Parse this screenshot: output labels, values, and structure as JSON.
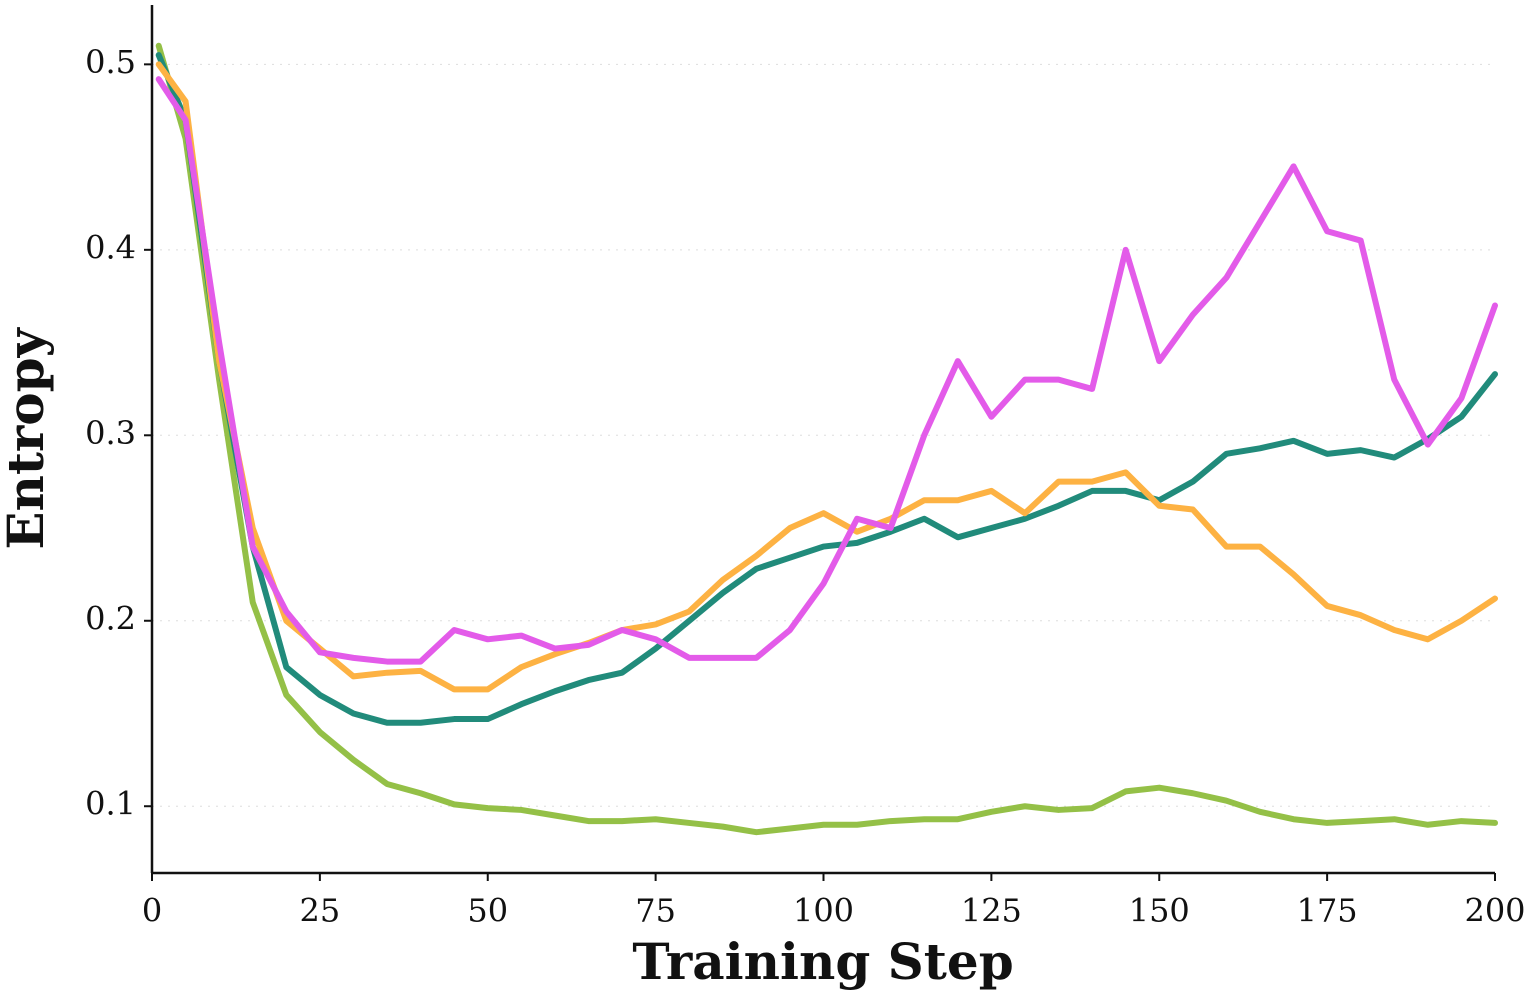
{
  "chart_data": {
    "type": "line",
    "x_label": "Training Step",
    "y_label": "Entropy",
    "x": [
      1,
      5,
      10,
      15,
      20,
      25,
      30,
      35,
      40,
      45,
      50,
      55,
      60,
      65,
      70,
      75,
      80,
      85,
      90,
      95,
      100,
      105,
      110,
      115,
      120,
      125,
      130,
      135,
      140,
      145,
      150,
      155,
      160,
      165,
      170,
      175,
      180,
      185,
      190,
      195,
      200
    ],
    "series": [
      {
        "color": "#94c047",
        "values": [
          0.51,
          0.46,
          0.33,
          0.21,
          0.16,
          0.14,
          0.125,
          0.112,
          0.107,
          0.101,
          0.099,
          0.098,
          0.095,
          0.092,
          0.092,
          0.093,
          0.091,
          0.089,
          0.086,
          0.088,
          0.09,
          0.09,
          0.092,
          0.093,
          0.093,
          0.097,
          0.1,
          0.098,
          0.099,
          0.108,
          0.11,
          0.107,
          0.103,
          0.097,
          0.093,
          0.091,
          0.092,
          0.093,
          0.09,
          0.092,
          0.091
        ]
      },
      {
        "color": "#218b7b",
        "values": [
          0.505,
          0.47,
          0.34,
          0.24,
          0.175,
          0.16,
          0.15,
          0.145,
          0.145,
          0.147,
          0.147,
          0.155,
          0.162,
          0.168,
          0.172,
          0.185,
          0.2,
          0.215,
          0.228,
          0.234,
          0.24,
          0.242,
          0.248,
          0.255,
          0.245,
          0.25,
          0.255,
          0.262,
          0.27,
          0.27,
          0.265,
          0.275,
          0.29,
          0.293,
          0.297,
          0.29,
          0.292,
          0.288,
          0.298,
          0.31,
          0.333
        ]
      },
      {
        "color": "#fdb243",
        "values": [
          0.5,
          0.48,
          0.34,
          0.25,
          0.2,
          0.185,
          0.17,
          0.172,
          0.173,
          0.163,
          0.163,
          0.175,
          0.182,
          0.188,
          0.195,
          0.198,
          0.205,
          0.222,
          0.235,
          0.25,
          0.258,
          0.248,
          0.255,
          0.265,
          0.265,
          0.27,
          0.258,
          0.275,
          0.275,
          0.28,
          0.262,
          0.26,
          0.24,
          0.24,
          0.225,
          0.208,
          0.203,
          0.195,
          0.19,
          0.2,
          0.212
        ]
      },
      {
        "color": "#e35be9",
        "values": [
          0.492,
          0.47,
          0.35,
          0.24,
          0.205,
          0.183,
          0.18,
          0.178,
          0.178,
          0.195,
          0.19,
          0.192,
          0.185,
          0.187,
          0.195,
          0.19,
          0.18,
          0.18,
          0.18,
          0.195,
          0.22,
          0.255,
          0.25,
          0.3,
          0.34,
          0.31,
          0.33,
          0.33,
          0.325,
          0.4,
          0.34,
          0.365,
          0.385,
          0.415,
          0.445,
          0.41,
          0.405,
          0.33,
          0.295,
          0.32,
          0.37
        ]
      }
    ],
    "xlim": [
      0,
      200
    ],
    "xticks": [
      0,
      25,
      50,
      75,
      100,
      125,
      150,
      175,
      200
    ],
    "ylim": [
      0.064,
      0.532
    ],
    "yticks": [
      0.1,
      0.2,
      0.3,
      0.4,
      0.5
    ],
    "grid": true
  }
}
